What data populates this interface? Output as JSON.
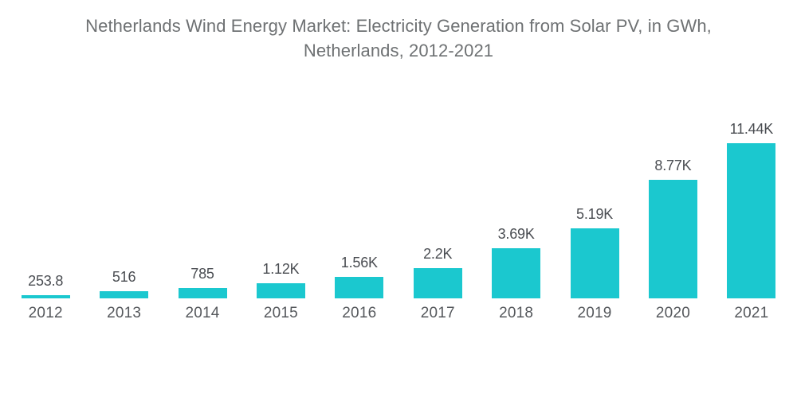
{
  "header": {
    "title_lines": [
      "Netherlands Wind Energy Market: Electricity Generation from Solar PV, in GWh,",
      "Netherlands, 2012-2021"
    ]
  },
  "chart_data": {
    "type": "bar",
    "title": "Netherlands Wind Energy Market: Electricity Generation from Solar PV, in GWh, Netherlands, 2012-2021",
    "categories": [
      "2012",
      "2013",
      "2014",
      "2015",
      "2016",
      "2017",
      "2018",
      "2019",
      "2020",
      "2021"
    ],
    "values": [
      253.8,
      516,
      785,
      1120,
      1560,
      2200,
      3690,
      5190,
      8770,
      11440
    ],
    "value_labels": [
      "253.8",
      "516",
      "785",
      "1.12K",
      "1.56K",
      "2.2K",
      "3.69K",
      "5.19K",
      "8.77K",
      "11.44K"
    ],
    "unit": "GWh",
    "xlabel": "",
    "ylabel": "",
    "ylim": [
      0,
      11440
    ],
    "grid": false,
    "legend": "none",
    "axes_visible": false,
    "data_labels_position": "above-bars",
    "colors": {
      "bar": "#1bc8cf",
      "title_text": "#6e7173",
      "value_label_text": "#4a4d52",
      "axis_label_text": "#55585c",
      "background": "#ffffff"
    }
  }
}
